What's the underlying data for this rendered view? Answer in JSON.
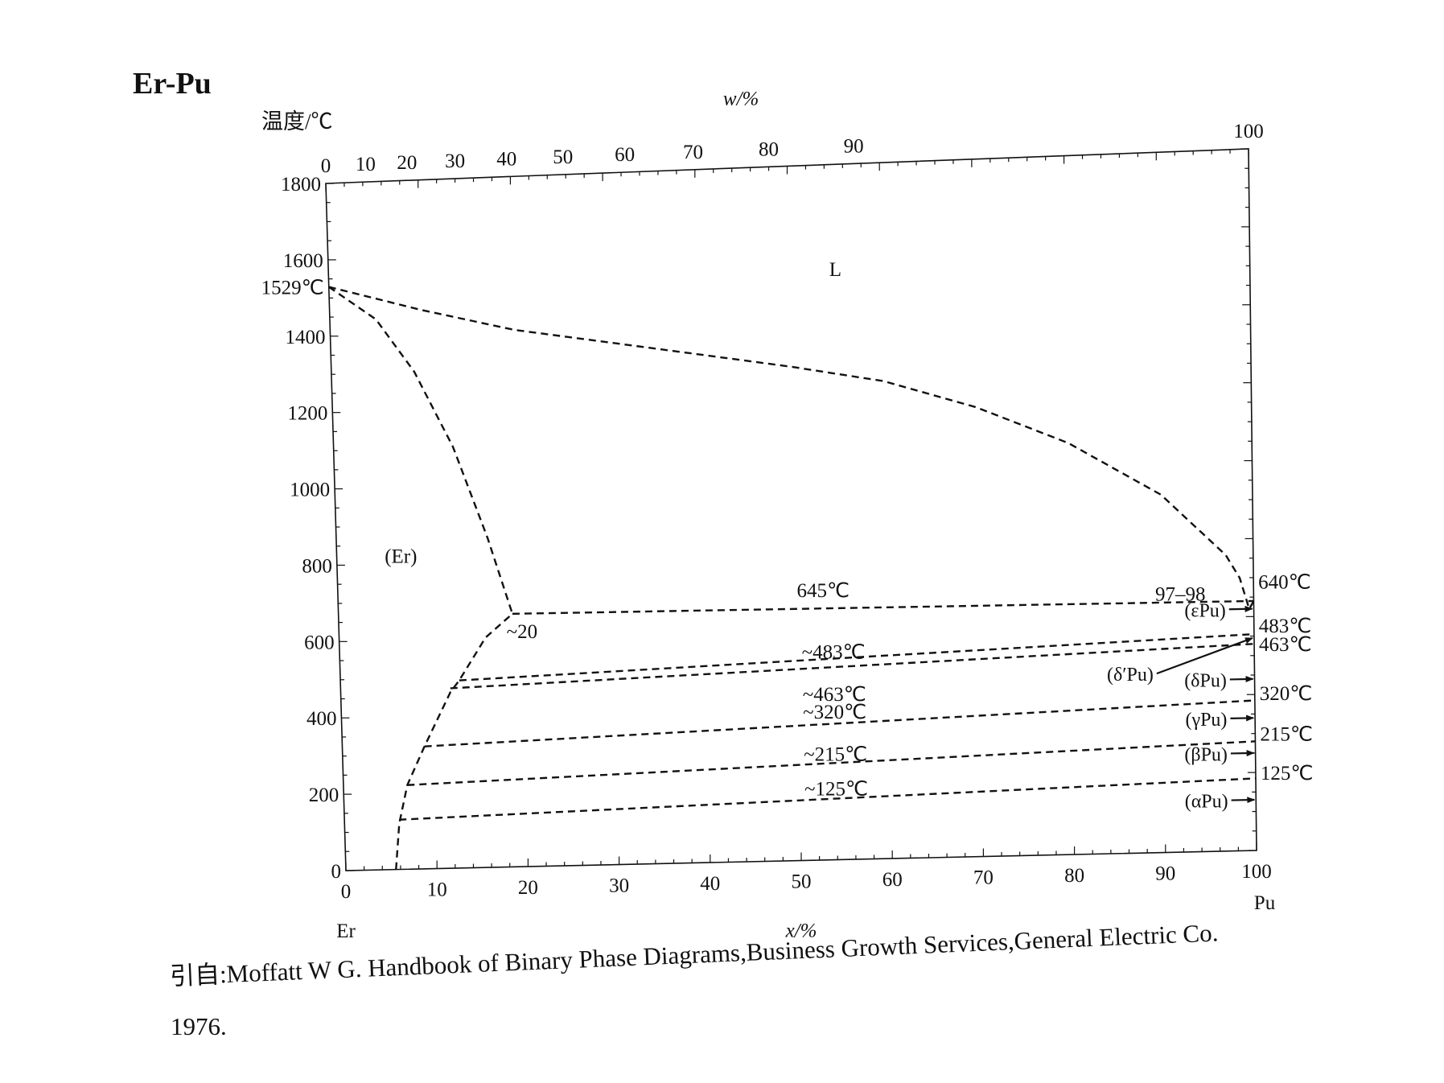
{
  "figure": {
    "title": "Er-Pu",
    "citation": "引自:Moffatt W G. Handbook of Binary Phase Diagrams,Business Growth Services,General Electric Co.",
    "citation_year": "1976."
  },
  "chart_data": {
    "type": "line",
    "title": "Er-Pu",
    "xlabel": "x/%",
    "x2label": "w/%",
    "ylabel": "温度/℃",
    "xlim": [
      0,
      100
    ],
    "ylim": [
      0,
      1800
    ],
    "x_ticks": [
      "0",
      "10",
      "20",
      "30",
      "40",
      "50",
      "60",
      "70",
      "80",
      "90",
      "100"
    ],
    "x2_ticks": [
      "0",
      "10",
      "20",
      "30",
      "40",
      "50",
      "60",
      "70",
      "80",
      "90",
      "100"
    ],
    "x2_tick_positions_at_x": [
      0,
      4.3,
      8.8,
      14.0,
      19.6,
      25.7,
      32.4,
      39.8,
      48.0,
      57.2,
      100
    ],
    "y_ticks": [
      "0",
      "200",
      "400",
      "600",
      "800",
      "1000",
      "1200",
      "1400",
      "1600",
      "1800"
    ],
    "end_labels": {
      "left": "Er",
      "right": "Pu"
    },
    "grid": false,
    "line_style": "dashed",
    "series": [
      {
        "values": [
          [
            0,
            1529
          ],
          [
            5,
            1440
          ],
          [
            9,
            1300
          ],
          [
            13,
            1100
          ],
          [
            16.5,
            860
          ],
          [
            19,
            660
          ]
        ]
      },
      {
        "values": [
          [
            0,
            1529
          ],
          [
            10,
            1460
          ],
          [
            20,
            1400
          ],
          [
            30,
            1360
          ],
          [
            40,
            1320
          ],
          [
            50,
            1280
          ],
          [
            60,
            1235
          ],
          [
            70,
            1160
          ],
          [
            80,
            1060
          ],
          [
            90,
            920
          ],
          [
            97,
            760
          ],
          [
            98.5,
            700
          ],
          [
            99.5,
            620
          ],
          [
            100,
            640
          ]
        ]
      },
      {
        "values": [
          [
            5.5,
            0
          ],
          [
            6,
            120
          ],
          [
            7,
            220
          ],
          [
            9,
            320
          ],
          [
            12,
            460
          ],
          [
            13,
            490
          ],
          [
            16,
            600
          ],
          [
            19,
            660
          ]
        ]
      },
      {
        "values": [
          [
            19,
            660
          ],
          [
            100,
            640
          ]
        ]
      },
      {
        "values": [
          [
            13,
            490
          ],
          [
            100,
            555
          ]
        ]
      },
      {
        "values": [
          [
            12,
            470
          ],
          [
            100,
            530
          ]
        ]
      },
      {
        "values": [
          [
            9,
            320
          ],
          [
            100,
            385
          ]
        ]
      },
      {
        "values": [
          [
            7,
            220
          ],
          [
            100,
            280
          ]
        ]
      },
      {
        "values": [
          [
            6,
            130
          ],
          [
            100,
            185
          ]
        ]
      }
    ],
    "pu_arrows": [
      {
        "label": "(εPu)",
        "from": [
          98,
          620
        ],
        "to": [
          100,
          620
        ]
      },
      {
        "label": "(δ′Pu)",
        "from": [
          90,
          460
        ],
        "to": [
          100,
          545
        ]
      },
      {
        "label": "(δPu)",
        "from": [
          98,
          440
        ],
        "to": [
          100,
          440
        ]
      },
      {
        "label": "(γPu)",
        "from": [
          98,
          340
        ],
        "to": [
          100,
          340
        ]
      },
      {
        "label": "(βPu)",
        "from": [
          98,
          250
        ],
        "to": [
          100,
          250
        ]
      },
      {
        "label": "(αPu)",
        "from": [
          98,
          130
        ],
        "to": [
          100,
          130
        ]
      }
    ],
    "annotations": [
      {
        "text": "L",
        "x": 55,
        "y": 1530
      },
      {
        "text": "(Er)",
        "x": 7,
        "y": 820
      },
      {
        "text": "1529℃",
        "x": 0,
        "y": 1529,
        "side": "left"
      },
      {
        "text": "645℃",
        "x": 53,
        "y": 700
      },
      {
        "text": "~20",
        "x": 20,
        "y": 615
      },
      {
        "text": "~483℃",
        "x": 54,
        "y": 540
      },
      {
        "text": "~463℃",
        "x": 54,
        "y": 430
      },
      {
        "text": "~320℃",
        "x": 54,
        "y": 385
      },
      {
        "text": "~215℃",
        "x": 54,
        "y": 275
      },
      {
        "text": "~125℃",
        "x": 54,
        "y": 185
      },
      {
        "text": "97–98",
        "x": 92,
        "y": 665
      },
      {
        "text": "640℃",
        "x": 100,
        "y": 690,
        "side": "right"
      },
      {
        "text": "483℃",
        "x": 100,
        "y": 578,
        "side": "right"
      },
      {
        "text": "463℃",
        "x": 100,
        "y": 530,
        "side": "right"
      },
      {
        "text": "320℃",
        "x": 100,
        "y": 405,
        "side": "right"
      },
      {
        "text": "215℃",
        "x": 100,
        "y": 300,
        "side": "right"
      },
      {
        "text": "125℃",
        "x": 100,
        "y": 200,
        "side": "right"
      }
    ]
  }
}
